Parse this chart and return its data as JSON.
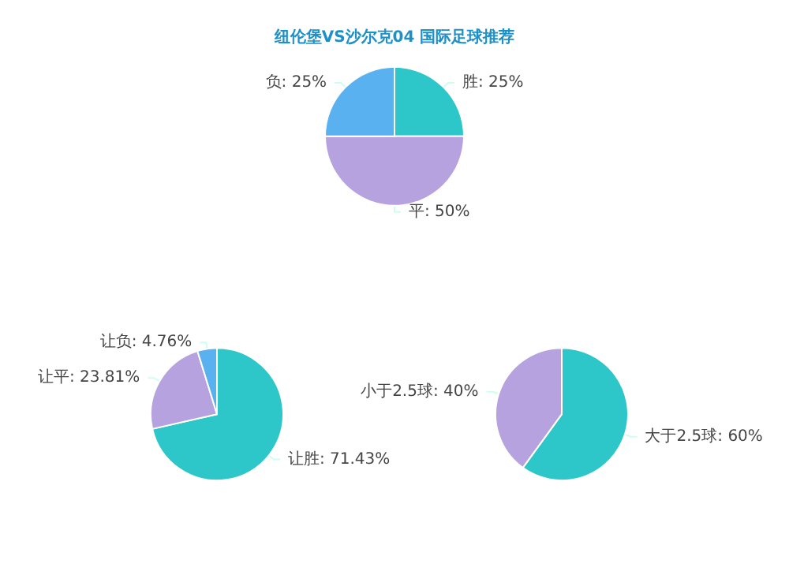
{
  "chart_data": [
    {
      "type": "pie",
      "title": "纽伦堡VS沙尔克04 国际足球推荐",
      "categories": [
        "胜",
        "平",
        "负"
      ],
      "values": [
        25,
        50,
        25
      ],
      "value_labels": [
        "25%",
        "50%",
        "25%"
      ],
      "colors": [
        "#2ec7c9",
        "#b6a2de",
        "#5ab1ef"
      ]
    },
    {
      "type": "pie",
      "categories": [
        "让胜",
        "让平",
        "让负"
      ],
      "values": [
        71.43,
        23.81,
        4.76
      ],
      "value_labels": [
        "71.43%",
        "23.81%",
        "4.76%"
      ],
      "colors": [
        "#2ec7c9",
        "#b6a2de",
        "#5ab1ef"
      ]
    },
    {
      "type": "pie",
      "categories": [
        "大于2.5球",
        "小于2.5球"
      ],
      "values": [
        60,
        40
      ],
      "value_labels": [
        "60%",
        "40%"
      ],
      "colors": [
        "#2ec7c9",
        "#b6a2de"
      ]
    }
  ]
}
